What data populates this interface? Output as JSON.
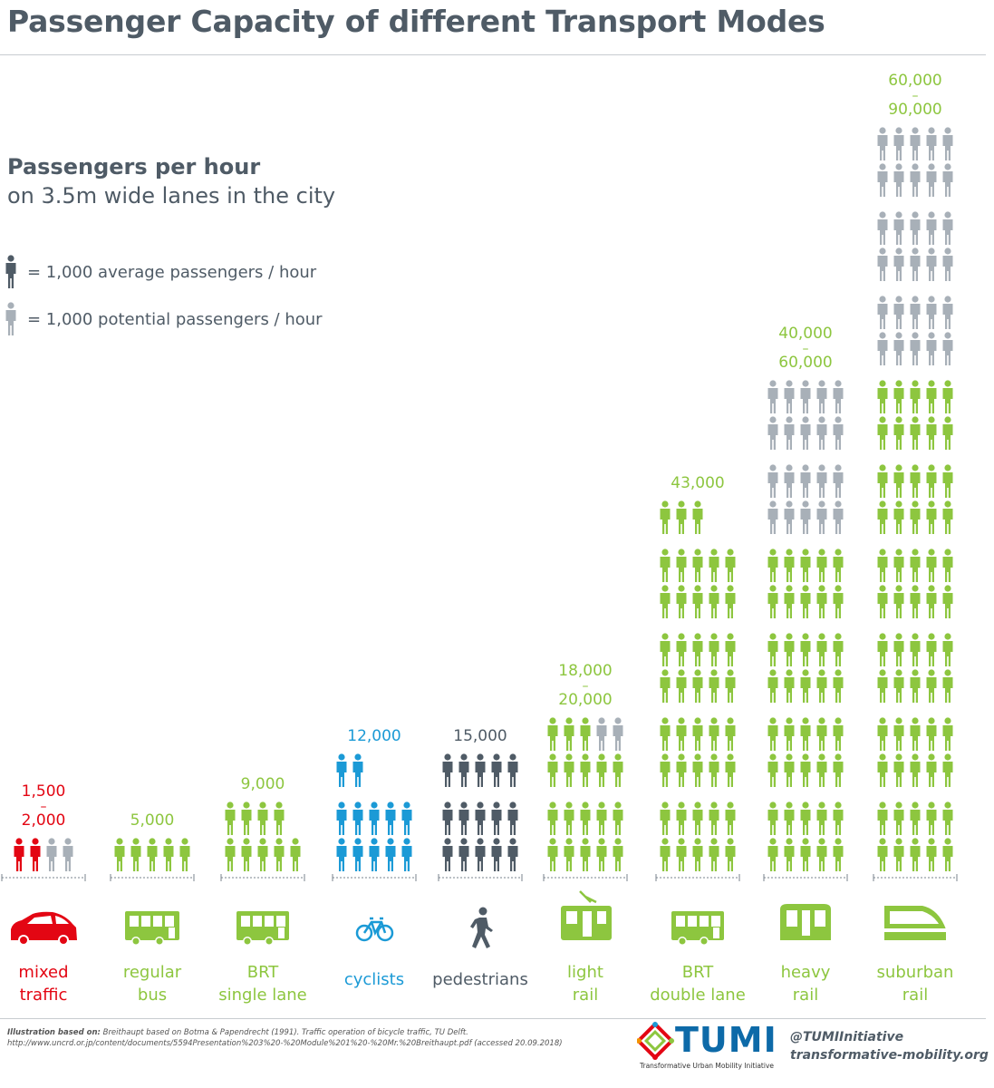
{
  "title": "Passenger Capacity of different Transport Modes",
  "subtitle": {
    "bold": "Passengers per hour",
    "normal": "on 3.5m wide lanes in the city"
  },
  "legend": [
    {
      "label": "= 1,000 average passengers / hour",
      "color": "#4f5b66"
    },
    {
      "label": "= 1,000 potential passengers / hour",
      "color": "#a8b0b8"
    }
  ],
  "colors": {
    "green": "#8dc63f",
    "grey": "#a8b0b8",
    "dark": "#4f5b66",
    "red": "#e30613",
    "blue": "#1b9ad6"
  },
  "chart_data": {
    "type": "pictograph",
    "unit": "1,000 passengers / hour per figure",
    "categories": [
      {
        "name": "mixed traffic",
        "label_lines": [
          "mixed",
          "traffic"
        ],
        "value_lines": [
          "1,500",
          "-",
          "2,000"
        ],
        "average": 1.5,
        "potential": 0.5,
        "color": "red",
        "icon": "car-icon"
      },
      {
        "name": "regular bus",
        "label_lines": [
          "regular",
          "bus"
        ],
        "value_lines": [
          "5,000"
        ],
        "average": 5,
        "potential": 0,
        "color": "green",
        "icon": "bus-icon"
      },
      {
        "name": "BRT single lane",
        "label_lines": [
          "BRT",
          "single  lane"
        ],
        "value_lines": [
          "9,000"
        ],
        "average": 9,
        "potential": 0,
        "color": "green",
        "icon": "brt-bus-icon"
      },
      {
        "name": "cyclists",
        "label_lines": [
          "cyclists"
        ],
        "value_lines": [
          "12,000"
        ],
        "average": 12,
        "potential": 0,
        "color": "blue",
        "icon": "bicycle-icon"
      },
      {
        "name": "pedestrians",
        "label_lines": [
          "pedestrians"
        ],
        "value_lines": [
          "15,000"
        ],
        "average": 15,
        "potential": 0,
        "color": "dark",
        "icon": "walking-person-icon"
      },
      {
        "name": "light rail",
        "label_lines": [
          "light",
          "rail"
        ],
        "value_lines": [
          "18,000",
          "-",
          "20,000"
        ],
        "average": 18,
        "potential": 2,
        "color": "green",
        "icon": "tram-icon"
      },
      {
        "name": "BRT double lane",
        "label_lines": [
          "BRT",
          "double lane"
        ],
        "value_lines": [
          "43,000"
        ],
        "average": 43,
        "potential": 0,
        "color": "green",
        "icon": "brt-double-bus-icon"
      },
      {
        "name": "heavy rail",
        "label_lines": [
          "heavy",
          "rail"
        ],
        "value_lines": [
          "40,000",
          "-",
          "60,000"
        ],
        "average": 40,
        "potential": 20,
        "color": "green",
        "icon": "train-icon"
      },
      {
        "name": "suburban rail",
        "label_lines": [
          "suburban",
          "rail"
        ],
        "value_lines": [
          "60,000",
          "-",
          "90,000"
        ],
        "average": 60,
        "potential": 30,
        "color": "green",
        "icon": "suburban-train-icon"
      }
    ]
  },
  "source": {
    "bold": "Illustration based on:",
    "text": "Breithaupt based on Botma & Papendrecht (1991). Traffic operation of bicycle traffic, TU Delft. http://www.uncrd.or.jp/content/documents/5594Presentation%203%20-%20Module%201%20-%20Mr.%20Breithaupt.pdf (accessed 20.09.2018)"
  },
  "logo": {
    "name": "TUMI",
    "tagline": "Transformative Urban Mobility Initiative"
  },
  "contact": {
    "twitter": "@TUMIInitiative",
    "website": "transformative-mobility.org"
  }
}
